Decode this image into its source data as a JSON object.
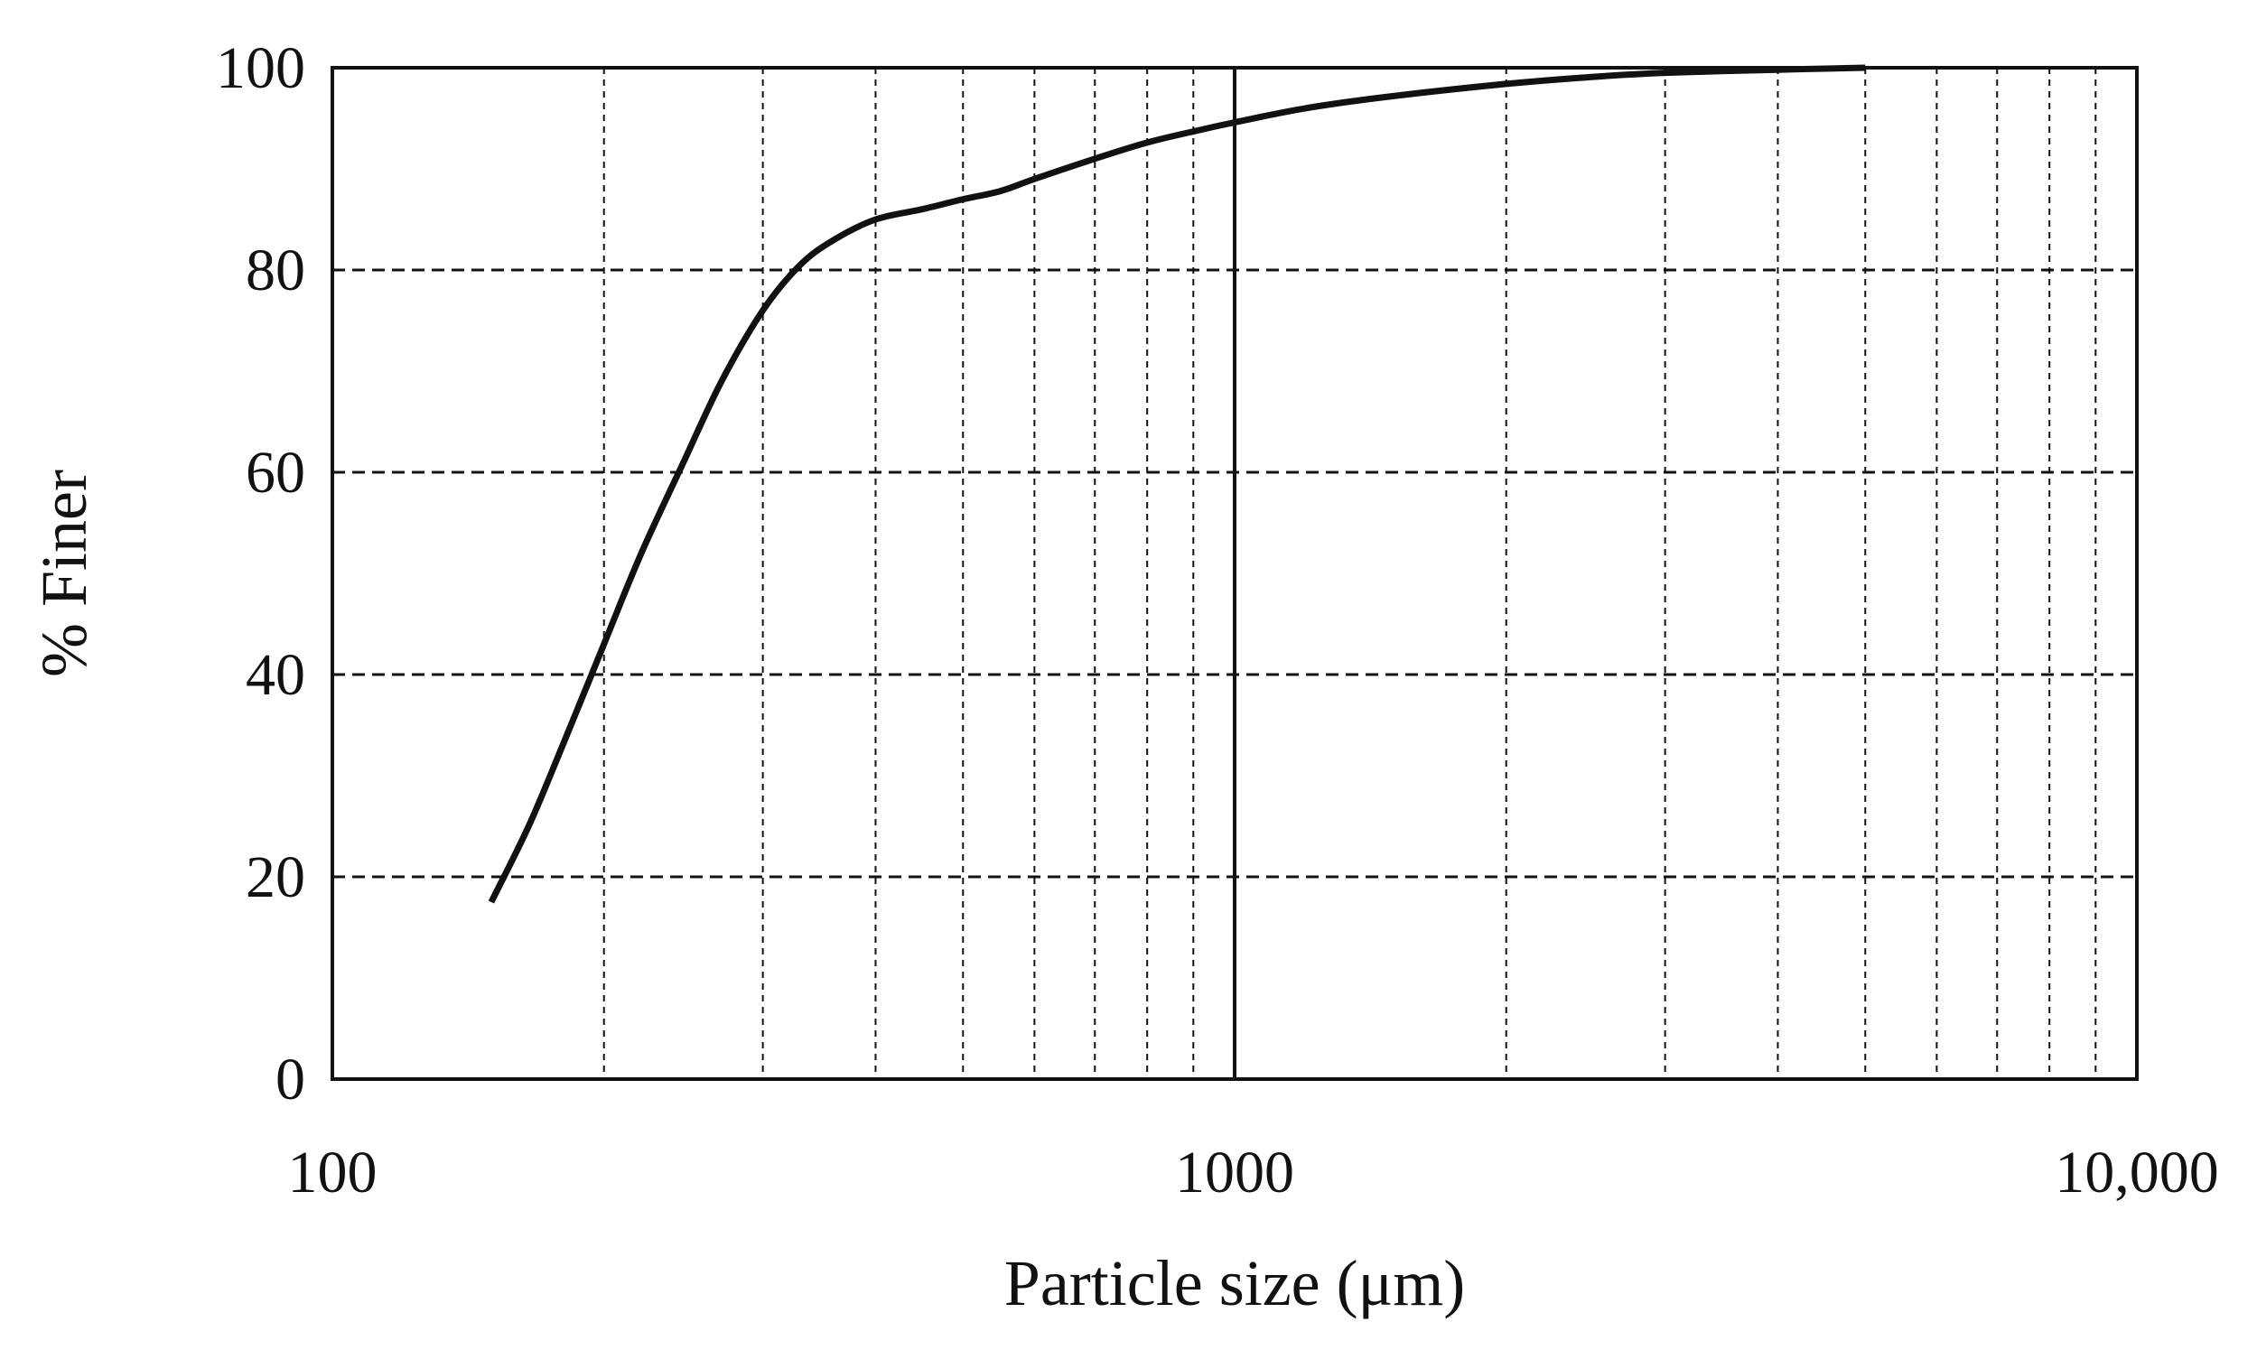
{
  "chart_data": {
    "type": "line",
    "title": "",
    "xlabel": "Particle size (μm)",
    "ylabel": "% Finer",
    "x_scale": "log",
    "xlim": [
      100,
      10000
    ],
    "ylim": [
      0,
      100
    ],
    "x_ticks": [
      100,
      1000,
      10000
    ],
    "x_tick_labels": [
      "100",
      "1000",
      "10,000"
    ],
    "y_ticks": [
      0,
      20,
      40,
      60,
      80,
      100
    ],
    "y_tick_labels": [
      "0",
      "20",
      "40",
      "60",
      "80",
      "100"
    ],
    "grid": {
      "x_minor": "dashed",
      "x_major": "solid",
      "y_major": "dashed"
    },
    "legend": "none",
    "line_color": "#111111",
    "series": [
      {
        "x": [
          150,
          165,
          180,
          200,
          220,
          245,
          270,
          300,
          330,
          360,
          400,
          450,
          500,
          550,
          600,
          700,
          800,
          900,
          1000,
          1200,
          1500,
          2000,
          2500,
          3000,
          4000,
          5000
        ],
        "y": [
          17.5,
          25,
          33,
          43,
          52,
          61,
          69,
          76,
          80.5,
          83,
          85,
          86,
          87,
          87.8,
          89,
          91,
          92.6,
          93.7,
          94.6,
          96,
          97.2,
          98.4,
          99.1,
          99.5,
          99.8,
          100
        ]
      }
    ]
  }
}
